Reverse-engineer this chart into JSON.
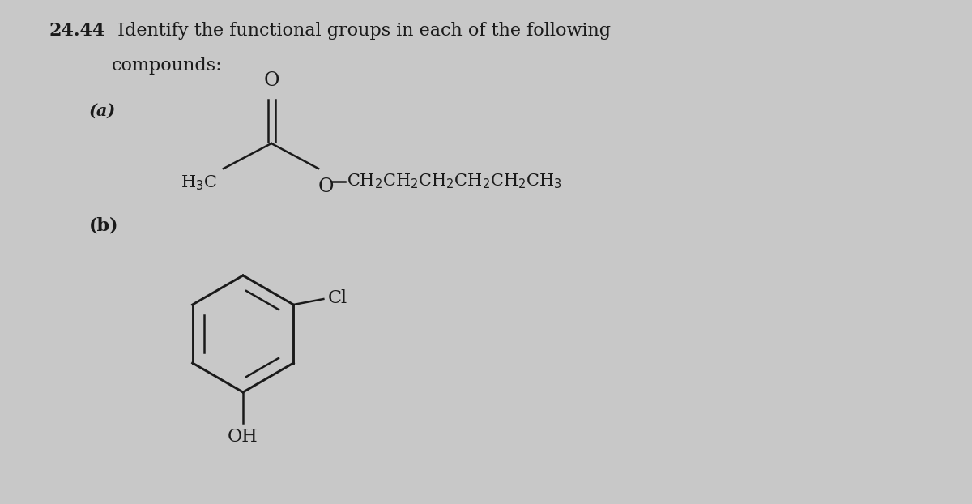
{
  "bg_color": "#c8c8c8",
  "font_color": "#1a1a1a",
  "title_num": "24.44",
  "title_rest": " Identify the functional groups in each of the following",
  "title_line2": "compounds:",
  "label_a": "(a)",
  "label_b": "(b)",
  "title_fontsize": 16,
  "label_fontsize": 15,
  "chem_fontsize": 14,
  "line_width": 1.8
}
